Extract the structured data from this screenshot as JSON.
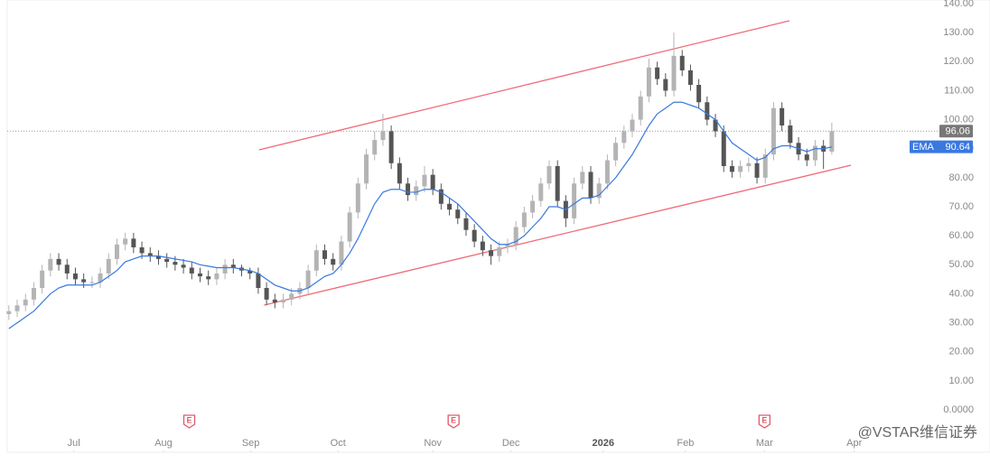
{
  "chart_data": {
    "type": "candlestick",
    "x": [
      0,
      1,
      2,
      3,
      4,
      5,
      6,
      7,
      8,
      9,
      10,
      11,
      12,
      13,
      14,
      15,
      16,
      17,
      18,
      19,
      20,
      21,
      22,
      23,
      24,
      25,
      26,
      27,
      28,
      29,
      30,
      31,
      32,
      33,
      34,
      35,
      36,
      37,
      38,
      39,
      40,
      41,
      42,
      43,
      44,
      45,
      46,
      47,
      48,
      49,
      50,
      51,
      52,
      53,
      54,
      55,
      56,
      57,
      58,
      59,
      60,
      61,
      62,
      63,
      64,
      65,
      66,
      67,
      68,
      69,
      70,
      71,
      72,
      73,
      74,
      75,
      76,
      77,
      78,
      79,
      80,
      81,
      82,
      83,
      84,
      85,
      86,
      87,
      88,
      89,
      90,
      91,
      92,
      93,
      94,
      95,
      96,
      97,
      98,
      99
    ],
    "open": [
      33,
      34,
      36,
      38,
      42,
      48,
      52,
      50,
      47,
      45,
      44,
      44,
      47,
      52,
      57,
      59,
      56,
      54,
      53,
      52,
      51,
      50,
      49,
      47,
      46,
      45,
      47,
      50,
      49,
      48,
      47,
      42,
      38,
      37,
      38,
      40,
      42,
      48,
      55,
      52,
      50,
      58,
      68,
      78,
      88,
      93,
      96,
      85,
      78,
      74,
      77,
      81,
      76,
      71,
      69,
      66,
      62,
      58,
      55,
      53,
      56,
      57,
      63,
      68,
      72,
      78,
      84,
      72,
      66,
      78,
      82,
      73,
      78,
      86,
      92,
      96,
      100,
      108,
      118,
      114,
      110,
      122,
      117,
      112,
      106,
      100,
      96,
      84,
      82,
      84,
      85,
      80,
      88,
      104,
      98,
      92,
      88,
      86,
      91,
      89
    ],
    "high": [
      36,
      38,
      40,
      44,
      50,
      54,
      54,
      52,
      49,
      47,
      46,
      49,
      54,
      59,
      61,
      61,
      58,
      56,
      55,
      54,
      53,
      52,
      51,
      49,
      48,
      49,
      52,
      52,
      50,
      49,
      49,
      44,
      40,
      40,
      42,
      44,
      50,
      57,
      57,
      54,
      60,
      70,
      80,
      90,
      96,
      102,
      98,
      87,
      80,
      79,
      84,
      83,
      78,
      73,
      71,
      68,
      64,
      60,
      57,
      58,
      59,
      65,
      70,
      74,
      80,
      86,
      86,
      74,
      80,
      84,
      84,
      80,
      88,
      94,
      98,
      102,
      110,
      121,
      120,
      116,
      130,
      124,
      119,
      114,
      108,
      102,
      98,
      86,
      86,
      87,
      87,
      90,
      106,
      106,
      100,
      94,
      90,
      93,
      93,
      99
    ],
    "low": [
      31,
      32,
      34,
      36,
      40,
      46,
      48,
      45,
      43,
      42,
      42,
      42,
      45,
      50,
      55,
      54,
      52,
      51,
      50,
      49,
      48,
      47,
      45,
      44,
      43,
      43,
      45,
      47,
      46,
      45,
      40,
      36,
      35,
      35,
      36,
      38,
      40,
      46,
      50,
      48,
      48,
      56,
      66,
      76,
      86,
      91,
      83,
      76,
      72,
      72,
      75,
      74,
      69,
      67,
      64,
      60,
      56,
      53,
      50,
      51,
      54,
      55,
      61,
      66,
      70,
      76,
      70,
      63,
      64,
      76,
      71,
      71,
      76,
      84,
      90,
      94,
      98,
      106,
      112,
      108,
      108,
      115,
      110,
      104,
      98,
      94,
      82,
      80,
      80,
      82,
      78,
      78,
      86,
      96,
      90,
      86,
      84,
      84,
      83,
      88
    ],
    "close": [
      34,
      36,
      38,
      42,
      48,
      52,
      50,
      47,
      45,
      44,
      44,
      47,
      52,
      57,
      59,
      56,
      54,
      53,
      52,
      51,
      50,
      49,
      47,
      46,
      45,
      47,
      50,
      49,
      48,
      47,
      42,
      38,
      37,
      38,
      40,
      42,
      48,
      55,
      52,
      50,
      58,
      68,
      78,
      88,
      93,
      96,
      85,
      78,
      74,
      77,
      81,
      76,
      71,
      69,
      66,
      62,
      58,
      55,
      53,
      56,
      57,
      63,
      68,
      72,
      78,
      84,
      72,
      66,
      78,
      82,
      73,
      78,
      86,
      92,
      96,
      100,
      108,
      118,
      114,
      110,
      122,
      117,
      112,
      106,
      100,
      96,
      84,
      82,
      84,
      85,
      80,
      88,
      104,
      98,
      92,
      88,
      86,
      91,
      89,
      96.06
    ],
    "up_color": "#b4b4b4",
    "down_color": "#555555",
    "series": [
      {
        "name": "EMA",
        "color": "#3a78e0",
        "values": [
          28,
          30,
          32,
          34,
          37,
          40,
          42,
          43,
          43,
          43,
          43,
          44,
          46,
          48,
          51,
          52,
          53,
          53,
          53,
          52.5,
          52,
          51.5,
          51,
          50,
          49.5,
          49,
          49,
          49,
          48.5,
          48,
          47,
          45,
          43,
          42,
          41,
          41,
          42,
          44,
          46,
          47,
          50,
          54,
          59,
          65,
          71,
          75,
          76,
          76,
          75,
          75,
          76,
          76,
          75,
          73,
          71,
          68,
          65,
          62,
          59,
          57,
          57,
          58,
          60,
          63,
          66,
          70,
          70,
          69,
          71,
          73,
          73,
          74,
          77,
          80,
          84,
          88,
          93,
          98,
          102,
          104,
          106,
          106,
          105,
          104,
          102,
          100,
          96,
          92,
          90,
          88,
          86,
          87,
          90,
          91,
          91,
          90,
          89,
          90,
          90,
          90.64
        ],
        "value_labels": {
          "99": "90.64"
        }
      }
    ],
    "last_price": {
      "value": 96.06,
      "label": "96.06"
    },
    "trend_lines": [
      {
        "color": "#f06a78",
        "x": [
          30.1,
          93.9
        ],
        "y": [
          89.6,
          134.1
        ]
      },
      {
        "color": "#f06a78",
        "x": [
          30.7,
          101.3
        ],
        "y": [
          36.1,
          84.3
        ]
      }
    ],
    "earnings_markers": {
      "label": "E",
      "x": [
        21.7,
        53.5,
        90.9
      ]
    },
    "xlim": [
      -0.2,
      107.6
    ],
    "xticks": [
      {
        "value": 7.8,
        "label": "Jul"
      },
      {
        "value": 18.6,
        "label": "Aug"
      },
      {
        "value": 29.1,
        "label": "Sep"
      },
      {
        "value": 39.6,
        "label": "Oct"
      },
      {
        "value": 51.0,
        "label": "Nov"
      },
      {
        "value": 60.4,
        "label": "Dec"
      },
      {
        "value": 71.5,
        "label": "2026"
      },
      {
        "value": 81.4,
        "label": "Feb"
      },
      {
        "value": 90.9,
        "label": "Mar"
      },
      {
        "value": 101.7,
        "label": "Apr"
      }
    ],
    "ylim": [
      0,
      140
    ],
    "yticks": [
      {
        "value": 0,
        "label": "0.0000"
      },
      {
        "value": 10,
        "label": "10.00"
      },
      {
        "value": 20,
        "label": "20.00"
      },
      {
        "value": 30,
        "label": "30.00"
      },
      {
        "value": 40,
        "label": "40.00"
      },
      {
        "value": 50,
        "label": "50.00"
      },
      {
        "value": 60,
        "label": "60.00"
      },
      {
        "value": 70,
        "label": "70.00"
      },
      {
        "value": 80,
        "label": "80.00"
      },
      {
        "value": 90,
        "label": "90.00"
      },
      {
        "value": 100,
        "label": "100.00"
      },
      {
        "value": 110,
        "label": "110.00"
      },
      {
        "value": 120,
        "label": "120.00"
      },
      {
        "value": 130,
        "label": "130.00"
      },
      {
        "value": 140,
        "label": "140.00"
      }
    ],
    "watermark": "@VSTAR维信证券"
  }
}
